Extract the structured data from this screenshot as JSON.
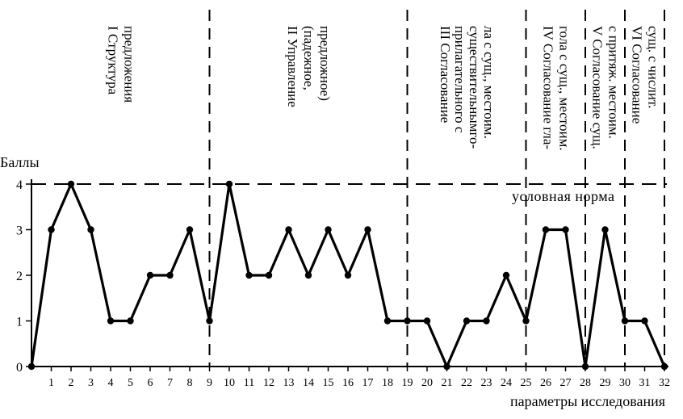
{
  "chart_data": {
    "type": "line",
    "ylabel": "Баллы",
    "xlabel": "параметры исследования",
    "ylim": [
      0,
      4
    ],
    "yticks": [
      0,
      1,
      2,
      3,
      4
    ],
    "x": [
      0,
      1,
      2,
      3,
      4,
      5,
      6,
      7,
      8,
      9,
      10,
      11,
      12,
      13,
      14,
      15,
      16,
      17,
      18,
      19,
      20,
      21,
      22,
      23,
      24,
      25,
      26,
      27,
      28,
      29,
      30,
      31,
      32
    ],
    "xtick_labels": [
      "1",
      "2",
      "3",
      "4",
      "5",
      "6",
      "7",
      "8",
      "9",
      "10",
      "11",
      "12",
      "13",
      "14",
      "15",
      "16",
      "17",
      "18",
      "19",
      "20",
      "21",
      "22",
      "23",
      "24",
      "25",
      "26",
      "27",
      "28",
      "29",
      "30",
      "31",
      "32"
    ],
    "series": [
      {
        "values": [
          0,
          3,
          4,
          3,
          1,
          1,
          2,
          2,
          3,
          1,
          4,
          2,
          2,
          3,
          2,
          3,
          2,
          3,
          1,
          1,
          1,
          0,
          1,
          1,
          2,
          1,
          3,
          3,
          0,
          3,
          1,
          1,
          0
        ]
      }
    ],
    "norm": {
      "value": 4,
      "label": "условная норма"
    },
    "sections": [
      {
        "start": 0,
        "end": 9,
        "lines": [
          "I Структура",
          "предложения"
        ]
      },
      {
        "start": 9,
        "end": 19,
        "lines": [
          "II Управление",
          "(падежное,",
          "предложное)"
        ]
      },
      {
        "start": 19,
        "end": 25,
        "lines": [
          "III Согласование",
          "прилагательного с",
          "существительнымго-",
          "ла с сущ., местоим."
        ]
      },
      {
        "start": 25,
        "end": 28,
        "lines": [
          "IV Согласование гла-",
          "гола с сущ., местоим."
        ]
      },
      {
        "start": 28,
        "end": 30,
        "lines": [
          "V Согласование сущ.",
          "с притяж. местоим."
        ]
      },
      {
        "start": 30,
        "end": 32,
        "lines": [
          "VI Согласование",
          "сущ. с числит."
        ]
      }
    ],
    "grid": false,
    "legend": "none"
  }
}
